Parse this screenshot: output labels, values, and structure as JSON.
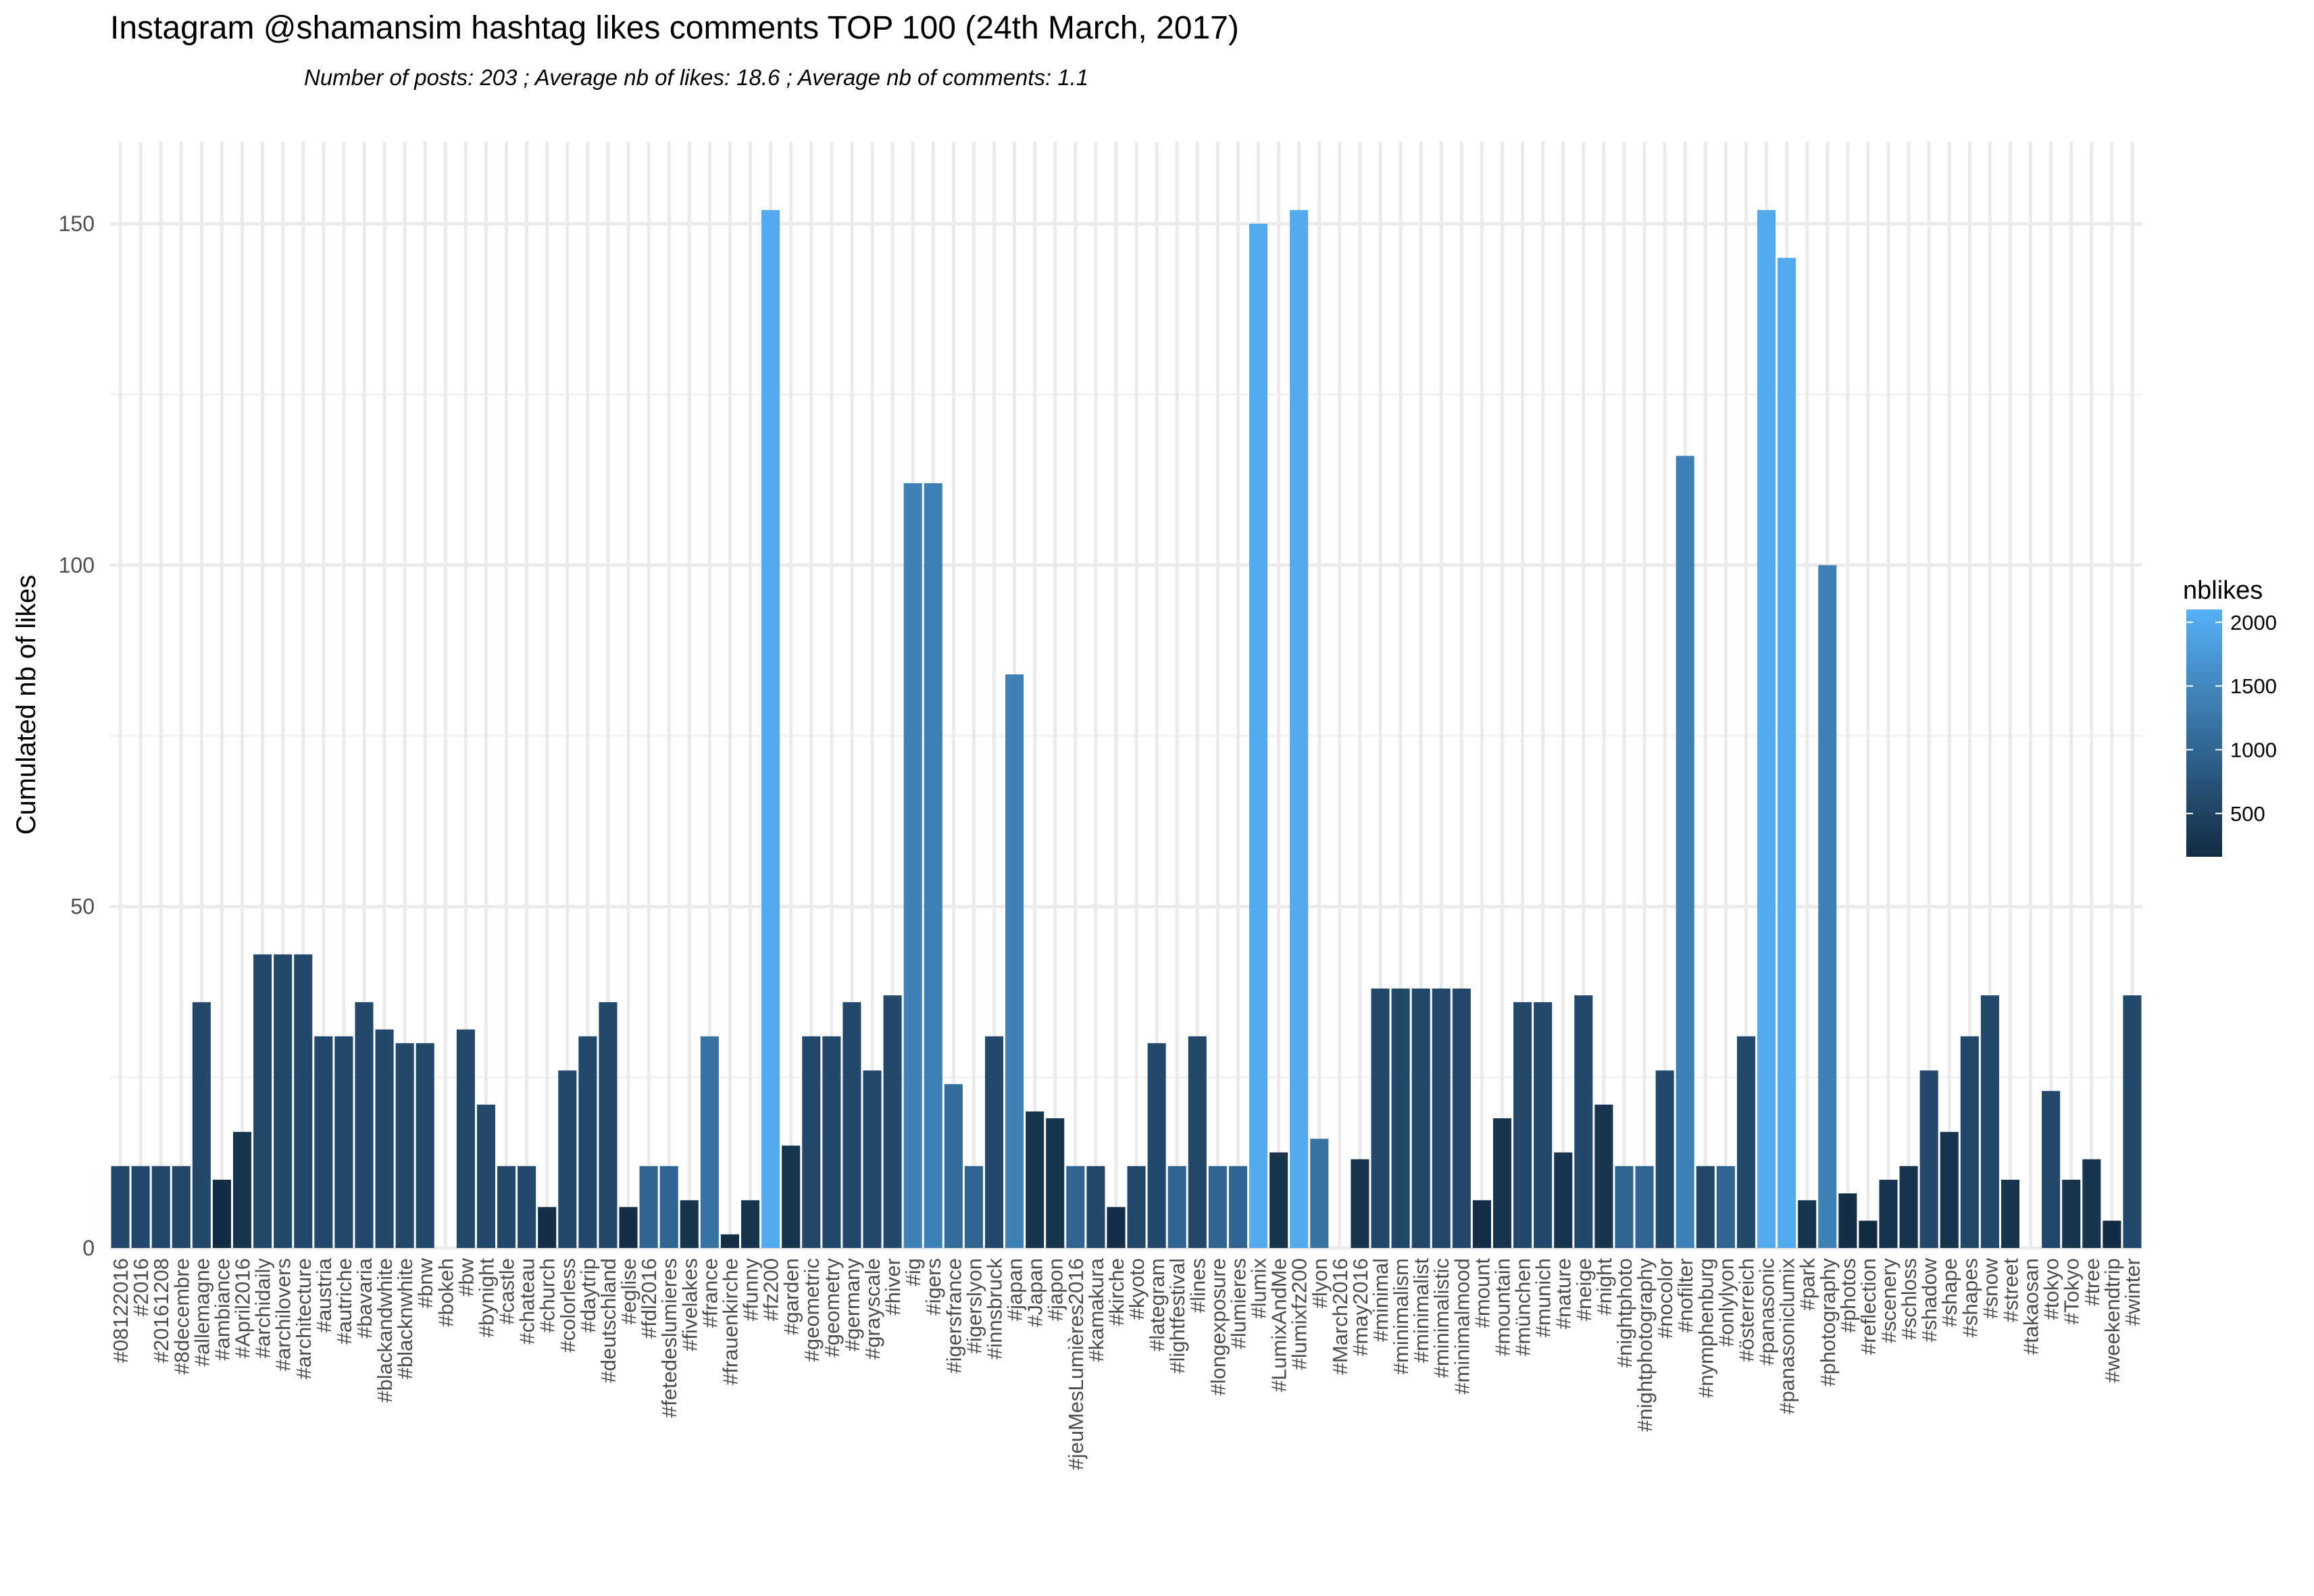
{
  "chart_data": {
    "type": "bar",
    "title": "Instagram @shamansim hashtag likes comments TOP 100 (24th March, 2017)",
    "subtitle": "Number of posts: 203 ; Average nb of likes: 18.6 ; Average nb of comments: 1.1",
    "xlabel": "",
    "ylabel": "Cumulated nb of likes",
    "ylim": [
      0,
      160
    ],
    "yticks": [
      0,
      50,
      100,
      150
    ],
    "grid": true,
    "legend_position": "right",
    "legend": {
      "title": "nblikes",
      "ticks": [
        500,
        1000,
        1500,
        2000
      ],
      "range": [
        160,
        2100
      ],
      "color_low": "#132b43",
      "color_high": "#56b1f7"
    },
    "categories": [
      "#08122016",
      "#2016",
      "#20161208",
      "#8decembre",
      "#allemagne",
      "#ambiance",
      "#April2016",
      "#archidaily",
      "#archilovers",
      "#architecture",
      "#austria",
      "#autriche",
      "#bavaria",
      "#blackandwhite",
      "#blacknwhite",
      "#bnw",
      "#bokeh",
      "#bw",
      "#bynight",
      "#castle",
      "#chateau",
      "#church",
      "#colorless",
      "#daytrip",
      "#deutschland",
      "#eglise",
      "#fdl2016",
      "#fetedeslumieres",
      "#fivelakes",
      "#france",
      "#frauenkirche",
      "#funny",
      "#fz200",
      "#garden",
      "#geometric",
      "#geometry",
      "#germany",
      "#grayscale",
      "#hiver",
      "#ig",
      "#igers",
      "#igersfrance",
      "#igerslyon",
      "#innsbruck",
      "#japan",
      "#Japan",
      "#japon",
      "#jeuMesLumières2016",
      "#kamakura",
      "#kirche",
      "#kyoto",
      "#lategram",
      "#lightfestival",
      "#lines",
      "#longexposure",
      "#lumieres",
      "#lumix",
      "#LumixAndMe",
      "#lumixfz200",
      "#lyon",
      "#March2016",
      "#may2016",
      "#minimal",
      "#minimalism",
      "#minimalist",
      "#minimalistic",
      "#minimalmood",
      "#mount",
      "#mountain",
      "#münchen",
      "#munich",
      "#nature",
      "#neige",
      "#night",
      "#nightphoto",
      "#nightphotography",
      "#nocolor",
      "#nofilter",
      "#nymphenburg",
      "#onlylyon",
      "#österreich",
      "#panasonic",
      "#panasoniclumix",
      "#park",
      "#photography",
      "#photos",
      "#reflection",
      "#scenery",
      "#schloss",
      "#shadow",
      "#shape",
      "#shapes",
      "#snow",
      "#street",
      "#takaosan",
      "#tokyo",
      "#Tokyo",
      "#tree",
      "#weekendtrip",
      "#winter"
    ],
    "series": [
      {
        "values": [
          12,
          12,
          12,
          12,
          36,
          10,
          17,
          43,
          43,
          43,
          31,
          31,
          36,
          32,
          30,
          30,
          0,
          32,
          21,
          12,
          12,
          6,
          26,
          31,
          36,
          6,
          12,
          12,
          7,
          31,
          2,
          7,
          152,
          15,
          31,
          31,
          36,
          26,
          37,
          112,
          112,
          24,
          12,
          31,
          84,
          20,
          19,
          12,
          12,
          6,
          12,
          30,
          12,
          31,
          12,
          12,
          150,
          14,
          152,
          16,
          0,
          13,
          38,
          38,
          38,
          38,
          38,
          7,
          19,
          36,
          36,
          14,
          37,
          21,
          12,
          12,
          26,
          116,
          12,
          12,
          31,
          152,
          145,
          7,
          100,
          8,
          4,
          10,
          12,
          26,
          17,
          31,
          37,
          10,
          0,
          23,
          10,
          13,
          4,
          37
        ],
        "colors": [
          600,
          600,
          600,
          600,
          600,
          160,
          300,
          600,
          600,
          600,
          600,
          600,
          600,
          600,
          600,
          600,
          160,
          600,
          600,
          600,
          600,
          200,
          600,
          600,
          600,
          200,
          1000,
          1000,
          300,
          1200,
          200,
          300,
          2000,
          300,
          600,
          600,
          600,
          600,
          600,
          1400,
          1400,
          1100,
          1000,
          600,
          1400,
          300,
          300,
          1000,
          600,
          200,
          600,
          600,
          1000,
          600,
          1000,
          1000,
          2000,
          300,
          2000,
          1200,
          160,
          300,
          600,
          600,
          600,
          600,
          600,
          200,
          300,
          600,
          600,
          300,
          600,
          300,
          1000,
          1000,
          600,
          1400,
          600,
          1000,
          600,
          2000,
          2000,
          300,
          1400,
          200,
          160,
          300,
          300,
          600,
          300,
          600,
          600,
          300,
          160,
          600,
          300,
          300,
          160,
          600
        ]
      }
    ]
  }
}
